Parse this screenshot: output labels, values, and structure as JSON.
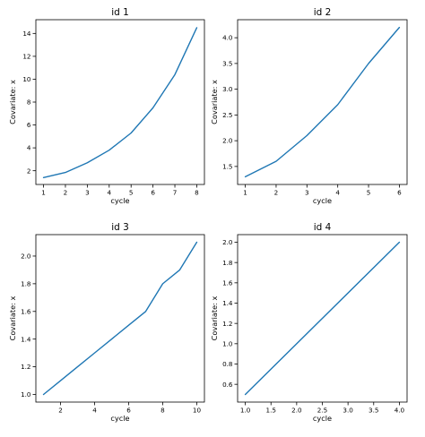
{
  "colors": {
    "series": "#1f77b4"
  },
  "chart_data": [
    {
      "type": "line",
      "title": "id 1",
      "xlabel": "cycle",
      "ylabel": "Covariate: x",
      "x": [
        1,
        2,
        3,
        4,
        5,
        6,
        7,
        8
      ],
      "series": [
        {
          "values": [
            1.4,
            1.85,
            2.7,
            3.8,
            5.3,
            7.5,
            10.4,
            14.5
          ]
        }
      ],
      "xlim": [
        0.65,
        8.35
      ],
      "ylim": [
        0.8,
        15.2
      ],
      "xticks": [
        1,
        2,
        3,
        4,
        5,
        6,
        7,
        8
      ],
      "yticks": [
        2,
        4,
        6,
        8,
        10,
        12,
        14
      ],
      "xtick_labels": [
        "1",
        "2",
        "3",
        "4",
        "5",
        "6",
        "7",
        "8"
      ],
      "ytick_labels": [
        "2",
        "4",
        "6",
        "8",
        "10",
        "12",
        "14"
      ]
    },
    {
      "type": "line",
      "title": "id 2",
      "xlabel": "cycle",
      "ylabel": "Covariate: x",
      "x": [
        1,
        2,
        3,
        4,
        5,
        6
      ],
      "series": [
        {
          "values": [
            1.3,
            1.6,
            2.1,
            2.7,
            3.5,
            4.2
          ]
        }
      ],
      "xlim": [
        0.75,
        6.25
      ],
      "ylim": [
        1.15,
        4.35
      ],
      "xticks": [
        1,
        2,
        3,
        4,
        5,
        6
      ],
      "yticks": [
        1.0,
        1.5,
        2.0,
        2.5,
        3.0,
        3.5,
        4.0
      ],
      "xtick_labels": [
        "1",
        "2",
        "3",
        "4",
        "5",
        "6"
      ],
      "ytick_labels": [
        "1.0",
        "1.5",
        "2.0",
        "2.5",
        "3.0",
        "3.5",
        "4.0"
      ]
    },
    {
      "type": "line",
      "title": "id 3",
      "xlabel": "cycle",
      "ylabel": "Covariate: x",
      "x": [
        1,
        2,
        3,
        4,
        5,
        6,
        7,
        8,
        9,
        10
      ],
      "series": [
        {
          "values": [
            1.0,
            1.1,
            1.2,
            1.3,
            1.4,
            1.5,
            1.6,
            1.8,
            1.9,
            2.1
          ]
        }
      ],
      "xlim": [
        0.55,
        10.45
      ],
      "ylim": [
        0.945,
        2.155
      ],
      "xticks": [
        2,
        4,
        6,
        8,
        10
      ],
      "yticks": [
        1.0,
        1.2,
        1.4,
        1.6,
        1.8,
        2.0
      ],
      "xtick_labels": [
        "2",
        "4",
        "6",
        "8",
        "10"
      ],
      "ytick_labels": [
        "1.0",
        "1.2",
        "1.4",
        "1.6",
        "1.8",
        "2.0"
      ]
    },
    {
      "type": "line",
      "title": "id 4",
      "xlabel": "cycle",
      "ylabel": "Covariate: x",
      "x": [
        1.0,
        4.0
      ],
      "series": [
        {
          "values": [
            0.5,
            2.0
          ]
        }
      ],
      "xlim": [
        0.85,
        4.15
      ],
      "ylim": [
        0.425,
        2.075
      ],
      "xticks": [
        1.0,
        1.5,
        2.0,
        2.5,
        3.0,
        3.5,
        4.0
      ],
      "yticks": [
        0.6,
        0.8,
        1.0,
        1.2,
        1.4,
        1.6,
        1.8,
        2.0
      ],
      "xtick_labels": [
        "1.0",
        "1.5",
        "2.0",
        "2.5",
        "3.0",
        "3.5",
        "4.0"
      ],
      "ytick_labels": [
        "0.6",
        "0.8",
        "1.0",
        "1.2",
        "1.4",
        "1.6",
        "1.8",
        "2.0"
      ]
    }
  ]
}
